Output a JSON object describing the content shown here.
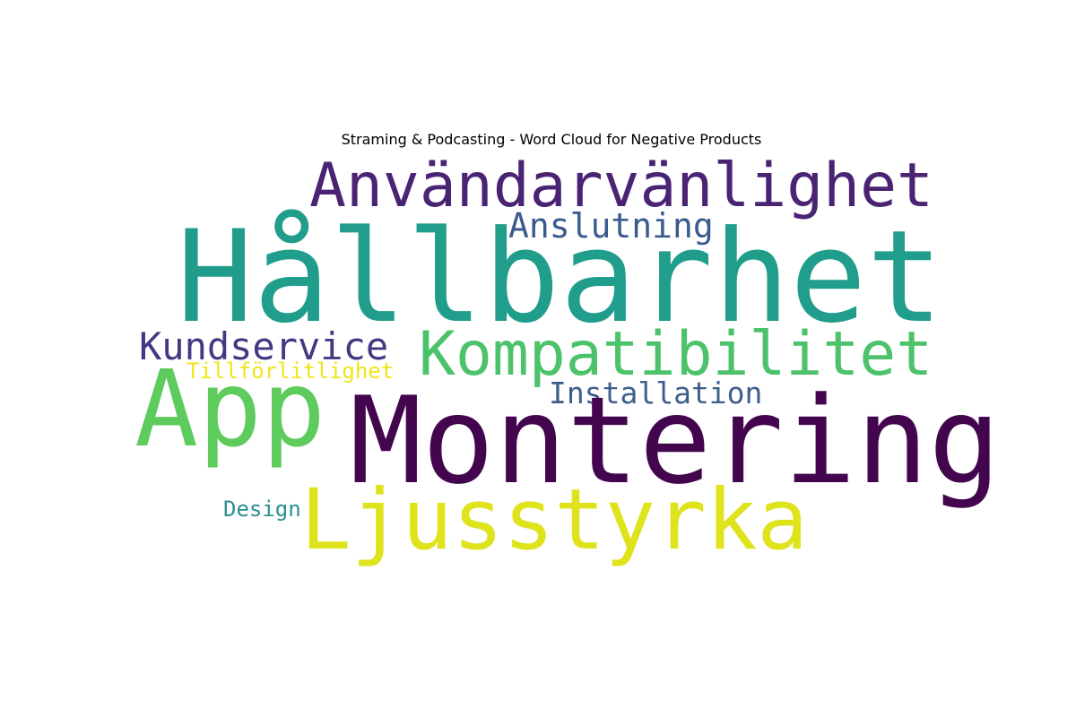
{
  "title": "Straming & Podcasting - Word Cloud for Negative Products",
  "words": [
    {
      "text": "Användarvänlighet",
      "color": "#4a2473"
    },
    {
      "text": "Anslutning",
      "color": "#3b5b8e"
    },
    {
      "text": "Hållbarhet",
      "color": "#219e8b"
    },
    {
      "text": "Kundservice",
      "color": "#453781"
    },
    {
      "text": "Kompatibilitet",
      "color": "#4cc26b"
    },
    {
      "text": "Tillförlitlighet",
      "color": "#f0e51b"
    },
    {
      "text": "Installation",
      "color": "#3e5e8c"
    },
    {
      "text": "App",
      "color": "#5ecb5d"
    },
    {
      "text": "Montering",
      "color": "#44054f"
    },
    {
      "text": "Design",
      "color": "#2c8f8f"
    },
    {
      "text": "Ljusstyrka",
      "color": "#dfe31c"
    }
  ]
}
